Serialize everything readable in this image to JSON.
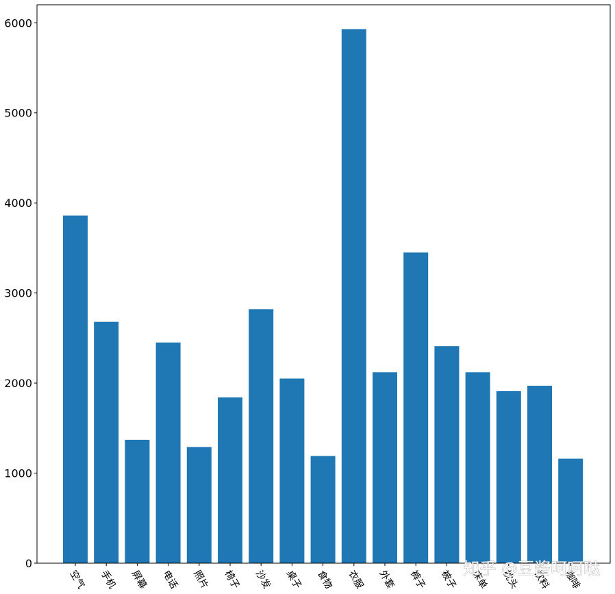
{
  "chart_data": {
    "type": "bar",
    "categories": [
      "空气",
      "手机",
      "屏幕",
      "电话",
      "照片",
      "椅子",
      "沙发",
      "桌子",
      "食物",
      "衣服",
      "外套",
      "裤子",
      "被子",
      "床单",
      "枕头",
      "饮料",
      "咖啡"
    ],
    "values": [
      3860,
      2680,
      1370,
      2450,
      1290,
      1840,
      2820,
      2050,
      1190,
      5930,
      2120,
      3450,
      2410,
      2120,
      1910,
      1970,
      1160
    ],
    "title": "",
    "xlabel": "",
    "ylabel": "",
    "ylim": [
      0,
      6200
    ],
    "yticks": [
      0,
      1000,
      2000,
      3000,
      4000,
      5000,
      6000
    ],
    "grid": false,
    "bar_color": "#1f77b4",
    "category_label_rotation_deg": 60
  },
  "watermark": "知乎 @豆酱呵呵哒"
}
